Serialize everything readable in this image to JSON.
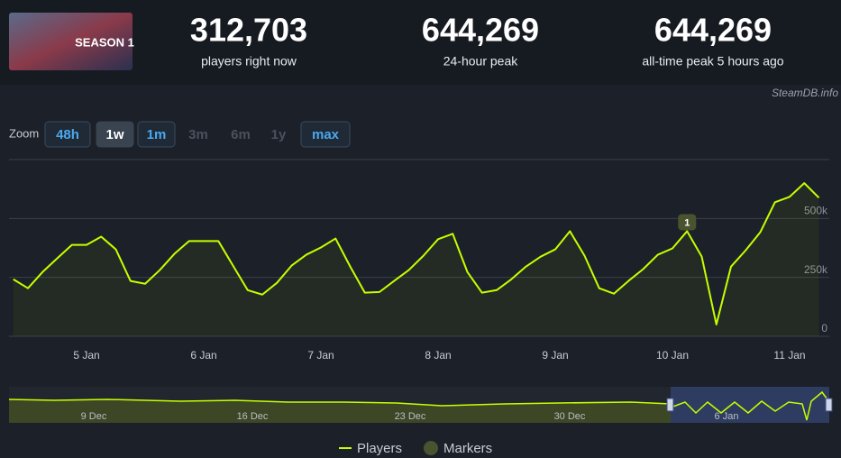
{
  "header": {
    "game_art_text": "SEASON 1",
    "stats": [
      {
        "value": "312,703",
        "label": "players right now"
      },
      {
        "value": "644,269",
        "label": "24-hour peak"
      },
      {
        "value": "644,269",
        "label": "all-time peak 5 hours ago"
      }
    ],
    "source": "SteamDB.info"
  },
  "zoom": {
    "label": "Zoom",
    "buttons": [
      "48h",
      "1w",
      "1m",
      "3m",
      "6m",
      "1y",
      "max"
    ]
  },
  "navigator": {
    "labels": [
      "9 Dec",
      "16 Dec",
      "23 Dec",
      "30 Dec",
      "6 Jan"
    ]
  },
  "chart_data": {
    "type": "line",
    "categories": [
      null,
      null,
      null,
      null,
      null,
      "5 Jan",
      null,
      null,
      null,
      null,
      null,
      null,
      null,
      "6 Jan",
      null,
      null,
      null,
      null,
      null,
      null,
      null,
      "7 Jan",
      null,
      null,
      null,
      null,
      null,
      null,
      null,
      "8 Jan",
      null,
      null,
      null,
      null,
      null,
      null,
      null,
      "9 Jan",
      null,
      null,
      null,
      null,
      null,
      null,
      null,
      "10 Jan",
      null,
      null,
      null,
      null,
      null,
      null,
      null,
      "11 Jan",
      null,
      null
    ],
    "series": [
      {
        "name": "Players",
        "color": "#c6ff00",
        "values": [
          242000,
          204000,
          273000,
          331000,
          388000,
          388000,
          423000,
          369000,
          235000,
          223000,
          281000,
          350000,
          404000,
          404000,
          404000,
          300000,
          196000,
          177000,
          227000,
          300000,
          346000,
          377000,
          415000,
          296000,
          185000,
          188000,
          235000,
          281000,
          342000,
          412000,
          435000,
          273000,
          185000,
          196000,
          242000,
          296000,
          338000,
          369000,
          446000,
          342000,
          204000,
          181000,
          235000,
          285000,
          346000,
          373000,
          446000,
          338000,
          50000,
          296000,
          365000,
          442000,
          569000,
          592000,
          650000,
          588000
        ]
      }
    ],
    "markers_legend": "Markers",
    "annotations": [
      {
        "label": "1",
        "index": 46
      }
    ],
    "ylim": [
      0,
      750000
    ],
    "yticks": [
      {
        "value": 0,
        "label": "0"
      },
      {
        "value": 250000,
        "label": "250k"
      },
      {
        "value": 500000,
        "label": "500k"
      }
    ],
    "grid": true
  }
}
